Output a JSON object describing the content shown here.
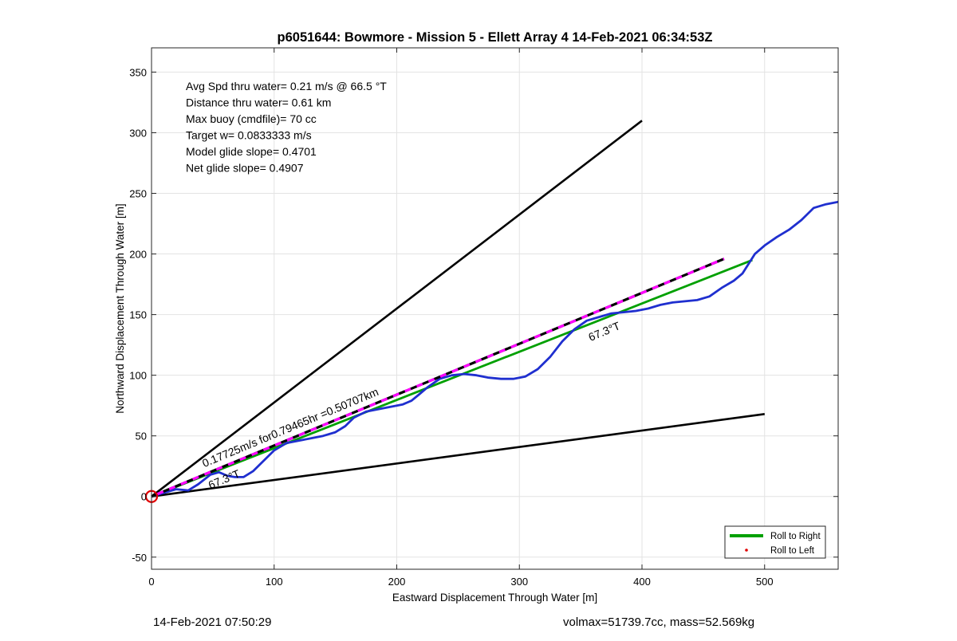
{
  "chart_data": {
    "type": "line",
    "title": "p6051644: Bowmore - Mission 5 - Ellett Array 4 14-Feb-2021 06:34:53Z",
    "xlabel": "Eastward Displacement Through Water [m]",
    "ylabel": "Northward Displacement Through Water [m]",
    "xlim": [
      0,
      560
    ],
    "ylim": [
      -60,
      370
    ],
    "x_ticks": [
      0,
      100,
      200,
      300,
      400,
      500
    ],
    "y_ticks": [
      -50,
      0,
      50,
      100,
      150,
      200,
      250,
      300,
      350
    ],
    "grid": true,
    "info_lines": [
      "Avg Spd thru water=  0.21 m/s @  66.5 °T",
      "Distance thru water=  0.61 km",
      "Max buoy (cmdfile)= 70 cc",
      "Target w= 0.0833333 m/s",
      "Model glide slope= 0.4701",
      "Net glide slope= 0.4907"
    ],
    "annotations": {
      "speed_label": "0.17725m/s for0.79465hr =0.50707km",
      "heading_label_near": "67.3°T",
      "heading_label_far": "67.3°T"
    },
    "legend": {
      "placement": "bottom-right",
      "entries": [
        {
          "label": "Roll to Right",
          "color": "#00a000",
          "style": "line"
        },
        {
          "label": "Roll to Left",
          "color": "#e00000",
          "style": "dot"
        }
      ]
    },
    "series": [
      {
        "role": "trajectory",
        "color": "#1f2fcf",
        "points": [
          [
            0,
            0
          ],
          [
            10,
            3
          ],
          [
            20,
            6
          ],
          [
            30,
            5
          ],
          [
            38,
            10
          ],
          [
            48,
            18
          ],
          [
            55,
            20
          ],
          [
            62,
            17
          ],
          [
            68,
            16
          ],
          [
            75,
            16
          ],
          [
            83,
            21
          ],
          [
            92,
            30
          ],
          [
            100,
            38
          ],
          [
            110,
            44
          ],
          [
            120,
            46
          ],
          [
            130,
            48
          ],
          [
            140,
            50
          ],
          [
            150,
            53
          ],
          [
            158,
            58
          ],
          [
            165,
            65
          ],
          [
            175,
            70
          ],
          [
            185,
            72
          ],
          [
            195,
            74
          ],
          [
            205,
            76
          ],
          [
            212,
            79
          ],
          [
            218,
            84
          ],
          [
            225,
            90
          ],
          [
            235,
            97
          ],
          [
            245,
            100
          ],
          [
            255,
            101
          ],
          [
            265,
            100
          ],
          [
            275,
            98
          ],
          [
            285,
            97
          ],
          [
            295,
            97
          ],
          [
            305,
            99
          ],
          [
            315,
            105
          ],
          [
            325,
            115
          ],
          [
            335,
            128
          ],
          [
            345,
            138
          ],
          [
            355,
            145
          ],
          [
            365,
            148
          ],
          [
            375,
            151
          ],
          [
            385,
            152
          ],
          [
            395,
            153
          ],
          [
            405,
            155
          ],
          [
            415,
            158
          ],
          [
            425,
            160
          ],
          [
            435,
            161
          ],
          [
            445,
            162
          ],
          [
            455,
            165
          ],
          [
            465,
            172
          ],
          [
            475,
            178
          ],
          [
            482,
            184
          ],
          [
            487,
            192
          ],
          [
            492,
            200
          ],
          [
            500,
            207
          ],
          [
            510,
            214
          ],
          [
            520,
            220
          ],
          [
            530,
            228
          ],
          [
            540,
            238
          ],
          [
            550,
            241
          ],
          [
            560,
            243
          ]
        ]
      },
      {
        "role": "roll-to-right",
        "color": "#00a000",
        "points": [
          [
            0,
            0
          ],
          [
            490,
            195
          ]
        ]
      },
      {
        "role": "net-track",
        "color": "#000000",
        "dash_color": "#ff00ff",
        "points": [
          [
            0,
            0
          ],
          [
            467,
            196
          ]
        ]
      },
      {
        "role": "upper-bound",
        "color": "#000000",
        "points": [
          [
            0,
            0
          ],
          [
            400,
            310
          ]
        ]
      },
      {
        "role": "lower-bound",
        "color": "#000000",
        "points": [
          [
            0,
            0
          ],
          [
            500,
            68
          ]
        ]
      }
    ],
    "start_marker": {
      "x": 0,
      "y": 0,
      "color": "#e00000"
    }
  },
  "footer": {
    "timestamp": "14-Feb-2021 07:50:29",
    "volume_mass": "volmax=51739.7cc, mass=52.569kg"
  }
}
